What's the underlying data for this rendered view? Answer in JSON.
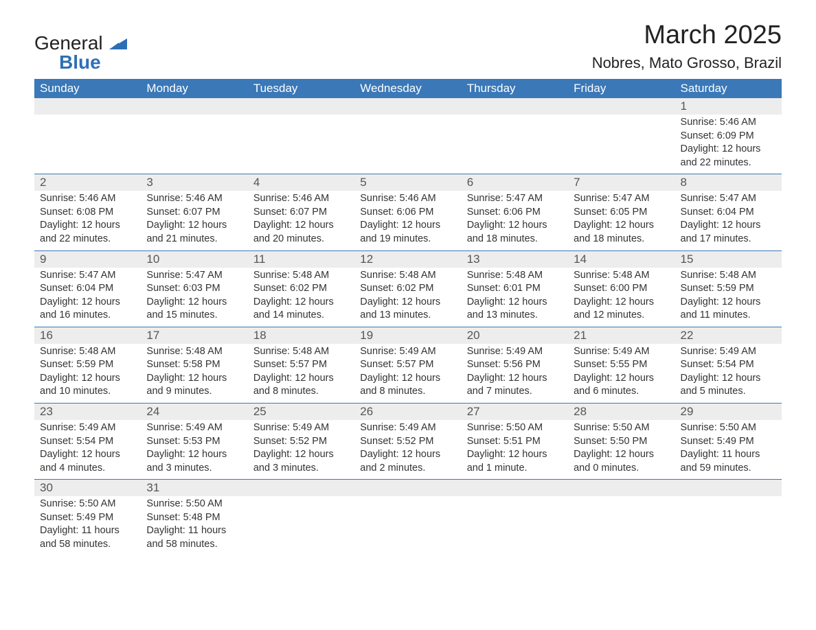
{
  "logo": {
    "word1": "General",
    "word2": "Blue"
  },
  "title": "March 2025",
  "location": "Nobres, Mato Grosso, Brazil",
  "colors": {
    "header_bg": "#3a78b8",
    "header_text": "#ffffff",
    "daynum_bg": "#ededed",
    "row_border": "#3a78b8",
    "body_text": "#333333",
    "logo_blue": "#2d6fb5"
  },
  "weekdays": [
    "Sunday",
    "Monday",
    "Tuesday",
    "Wednesday",
    "Thursday",
    "Friday",
    "Saturday"
  ],
  "weeks": [
    [
      null,
      null,
      null,
      null,
      null,
      null,
      {
        "n": "1",
        "sr": "Sunrise: 5:46 AM",
        "ss": "Sunset: 6:09 PM",
        "d1": "Daylight: 12 hours",
        "d2": "and 22 minutes."
      }
    ],
    [
      {
        "n": "2",
        "sr": "Sunrise: 5:46 AM",
        "ss": "Sunset: 6:08 PM",
        "d1": "Daylight: 12 hours",
        "d2": "and 22 minutes."
      },
      {
        "n": "3",
        "sr": "Sunrise: 5:46 AM",
        "ss": "Sunset: 6:07 PM",
        "d1": "Daylight: 12 hours",
        "d2": "and 21 minutes."
      },
      {
        "n": "4",
        "sr": "Sunrise: 5:46 AM",
        "ss": "Sunset: 6:07 PM",
        "d1": "Daylight: 12 hours",
        "d2": "and 20 minutes."
      },
      {
        "n": "5",
        "sr": "Sunrise: 5:46 AM",
        "ss": "Sunset: 6:06 PM",
        "d1": "Daylight: 12 hours",
        "d2": "and 19 minutes."
      },
      {
        "n": "6",
        "sr": "Sunrise: 5:47 AM",
        "ss": "Sunset: 6:06 PM",
        "d1": "Daylight: 12 hours",
        "d2": "and 18 minutes."
      },
      {
        "n": "7",
        "sr": "Sunrise: 5:47 AM",
        "ss": "Sunset: 6:05 PM",
        "d1": "Daylight: 12 hours",
        "d2": "and 18 minutes."
      },
      {
        "n": "8",
        "sr": "Sunrise: 5:47 AM",
        "ss": "Sunset: 6:04 PM",
        "d1": "Daylight: 12 hours",
        "d2": "and 17 minutes."
      }
    ],
    [
      {
        "n": "9",
        "sr": "Sunrise: 5:47 AM",
        "ss": "Sunset: 6:04 PM",
        "d1": "Daylight: 12 hours",
        "d2": "and 16 minutes."
      },
      {
        "n": "10",
        "sr": "Sunrise: 5:47 AM",
        "ss": "Sunset: 6:03 PM",
        "d1": "Daylight: 12 hours",
        "d2": "and 15 minutes."
      },
      {
        "n": "11",
        "sr": "Sunrise: 5:48 AM",
        "ss": "Sunset: 6:02 PM",
        "d1": "Daylight: 12 hours",
        "d2": "and 14 minutes."
      },
      {
        "n": "12",
        "sr": "Sunrise: 5:48 AM",
        "ss": "Sunset: 6:02 PM",
        "d1": "Daylight: 12 hours",
        "d2": "and 13 minutes."
      },
      {
        "n": "13",
        "sr": "Sunrise: 5:48 AM",
        "ss": "Sunset: 6:01 PM",
        "d1": "Daylight: 12 hours",
        "d2": "and 13 minutes."
      },
      {
        "n": "14",
        "sr": "Sunrise: 5:48 AM",
        "ss": "Sunset: 6:00 PM",
        "d1": "Daylight: 12 hours",
        "d2": "and 12 minutes."
      },
      {
        "n": "15",
        "sr": "Sunrise: 5:48 AM",
        "ss": "Sunset: 5:59 PM",
        "d1": "Daylight: 12 hours",
        "d2": "and 11 minutes."
      }
    ],
    [
      {
        "n": "16",
        "sr": "Sunrise: 5:48 AM",
        "ss": "Sunset: 5:59 PM",
        "d1": "Daylight: 12 hours",
        "d2": "and 10 minutes."
      },
      {
        "n": "17",
        "sr": "Sunrise: 5:48 AM",
        "ss": "Sunset: 5:58 PM",
        "d1": "Daylight: 12 hours",
        "d2": "and 9 minutes."
      },
      {
        "n": "18",
        "sr": "Sunrise: 5:48 AM",
        "ss": "Sunset: 5:57 PM",
        "d1": "Daylight: 12 hours",
        "d2": "and 8 minutes."
      },
      {
        "n": "19",
        "sr": "Sunrise: 5:49 AM",
        "ss": "Sunset: 5:57 PM",
        "d1": "Daylight: 12 hours",
        "d2": "and 8 minutes."
      },
      {
        "n": "20",
        "sr": "Sunrise: 5:49 AM",
        "ss": "Sunset: 5:56 PM",
        "d1": "Daylight: 12 hours",
        "d2": "and 7 minutes."
      },
      {
        "n": "21",
        "sr": "Sunrise: 5:49 AM",
        "ss": "Sunset: 5:55 PM",
        "d1": "Daylight: 12 hours",
        "d2": "and 6 minutes."
      },
      {
        "n": "22",
        "sr": "Sunrise: 5:49 AM",
        "ss": "Sunset: 5:54 PM",
        "d1": "Daylight: 12 hours",
        "d2": "and 5 minutes."
      }
    ],
    [
      {
        "n": "23",
        "sr": "Sunrise: 5:49 AM",
        "ss": "Sunset: 5:54 PM",
        "d1": "Daylight: 12 hours",
        "d2": "and 4 minutes."
      },
      {
        "n": "24",
        "sr": "Sunrise: 5:49 AM",
        "ss": "Sunset: 5:53 PM",
        "d1": "Daylight: 12 hours",
        "d2": "and 3 minutes."
      },
      {
        "n": "25",
        "sr": "Sunrise: 5:49 AM",
        "ss": "Sunset: 5:52 PM",
        "d1": "Daylight: 12 hours",
        "d2": "and 3 minutes."
      },
      {
        "n": "26",
        "sr": "Sunrise: 5:49 AM",
        "ss": "Sunset: 5:52 PM",
        "d1": "Daylight: 12 hours",
        "d2": "and 2 minutes."
      },
      {
        "n": "27",
        "sr": "Sunrise: 5:50 AM",
        "ss": "Sunset: 5:51 PM",
        "d1": "Daylight: 12 hours",
        "d2": "and 1 minute."
      },
      {
        "n": "28",
        "sr": "Sunrise: 5:50 AM",
        "ss": "Sunset: 5:50 PM",
        "d1": "Daylight: 12 hours",
        "d2": "and 0 minutes."
      },
      {
        "n": "29",
        "sr": "Sunrise: 5:50 AM",
        "ss": "Sunset: 5:49 PM",
        "d1": "Daylight: 11 hours",
        "d2": "and 59 minutes."
      }
    ],
    [
      {
        "n": "30",
        "sr": "Sunrise: 5:50 AM",
        "ss": "Sunset: 5:49 PM",
        "d1": "Daylight: 11 hours",
        "d2": "and 58 minutes."
      },
      {
        "n": "31",
        "sr": "Sunrise: 5:50 AM",
        "ss": "Sunset: 5:48 PM",
        "d1": "Daylight: 11 hours",
        "d2": "and 58 minutes."
      },
      null,
      null,
      null,
      null,
      null
    ]
  ]
}
